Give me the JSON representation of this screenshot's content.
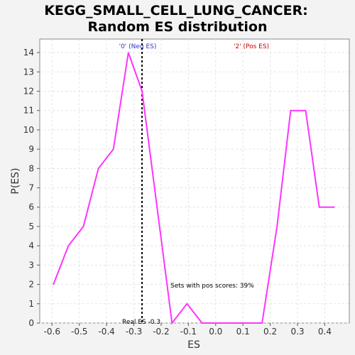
{
  "chart_data": {
    "type": "line",
    "title_line1": "KEGG_SMALL_CELL_LUNG_CANCER:",
    "title_line2": "Random ES distribution",
    "xlabel": "ES",
    "ylabel": "P(ES)",
    "xlim": [
      -0.645,
      0.49
    ],
    "ylim": [
      0,
      14.7
    ],
    "x_ticks": [
      -0.6,
      -0.5,
      -0.4,
      -0.3,
      -0.2,
      -0.1,
      0.0,
      0.1,
      0.2,
      0.3,
      0.4
    ],
    "x_tick_labels": [
      "-0.6",
      "-0.5",
      "-0.4",
      "-0.3",
      "-0.2",
      "-0.1",
      "0.0",
      "0.1",
      "0.2",
      "0.3",
      "0.4"
    ],
    "y_ticks": [
      0,
      1,
      2,
      3,
      4,
      5,
      6,
      7,
      8,
      9,
      10,
      11,
      12,
      13,
      14
    ],
    "y_tick_labels": [
      "0",
      "1",
      "2",
      "3",
      "4",
      "5",
      "6",
      "7",
      "8",
      "9",
      "10",
      "11",
      "12",
      "13",
      "14"
    ],
    "grid": true,
    "series": [
      {
        "color": "#ff33ff",
        "x": [
          -0.595,
          -0.54,
          -0.485,
          -0.43,
          -0.375,
          -0.32,
          -0.27,
          -0.16,
          -0.105,
          -0.05,
          0.005,
          0.06,
          0.115,
          0.17,
          0.225,
          0.275,
          0.33,
          0.38,
          0.435
        ],
        "y": [
          2,
          4,
          5,
          8,
          9,
          14,
          12,
          0,
          1,
          0,
          0,
          0,
          0,
          0,
          5,
          11,
          11,
          6,
          6
        ]
      }
    ],
    "real_es": -0.27,
    "real_es_label": "Real ES -0.3",
    "neg_label": "'0' (Neg ES)",
    "pos_label": "'2' (Pos ES)",
    "pos_scores_text": "Sets with pos scores: 39%",
    "colors": {
      "neg": "#3333cc",
      "pos": "#cc0000",
      "line": "#ff33ff"
    }
  }
}
